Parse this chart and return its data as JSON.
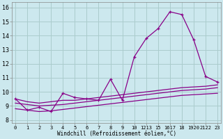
{
  "xlabel": "Windchill (Refroidissement éolien,°C)",
  "background_color": "#cce8ee",
  "line_color": "#880088",
  "grid_color": "#aacccc",
  "x_labels": [
    "0",
    "1",
    "2",
    "3",
    "4",
    "5",
    "6",
    "7",
    "8",
    "9",
    "10",
    "1213",
    "15",
    "1617",
    "18",
    "1920",
    "2122",
    "23"
  ],
  "x_positions": [
    0,
    1,
    2,
    3,
    4,
    5,
    6,
    7,
    8,
    9,
    10,
    11,
    12,
    13,
    14,
    15,
    16,
    17
  ],
  "ylim": [
    7.8,
    16.4
  ],
  "xlim": [
    -0.3,
    17.3
  ],
  "yticks": [
    8,
    9,
    10,
    11,
    12,
    13,
    14,
    15,
    16
  ],
  "series1_x": [
    0,
    1,
    2,
    3,
    4,
    5,
    6,
    7,
    8,
    9,
    10,
    11,
    12,
    13,
    14,
    15,
    16,
    17
  ],
  "series1_y": [
    9.5,
    8.7,
    8.9,
    8.6,
    9.9,
    9.6,
    9.5,
    9.4,
    10.9,
    9.4,
    12.5,
    13.8,
    14.5,
    15.7,
    15.5,
    13.7,
    11.1,
    10.7
  ],
  "series2_x": [
    0,
    1,
    2,
    3,
    4,
    5,
    6,
    7,
    8,
    9,
    10,
    11,
    12,
    13,
    14,
    15,
    16,
    17
  ],
  "series2_y": [
    9.5,
    9.3,
    9.2,
    9.3,
    9.4,
    9.4,
    9.5,
    9.6,
    9.7,
    9.8,
    9.9,
    10.0,
    10.1,
    10.2,
    10.3,
    10.35,
    10.4,
    10.5
  ],
  "series3_x": [
    0,
    1,
    2,
    3,
    4,
    5,
    6,
    7,
    8,
    9,
    10,
    11,
    12,
    13,
    14,
    15,
    16,
    17
  ],
  "series3_y": [
    9.2,
    9.1,
    9.0,
    9.05,
    9.1,
    9.2,
    9.3,
    9.4,
    9.5,
    9.6,
    9.7,
    9.8,
    9.9,
    10.0,
    10.1,
    10.15,
    10.2,
    10.3
  ],
  "series4_x": [
    0,
    1,
    2,
    3,
    4,
    5,
    6,
    7,
    8,
    9,
    10,
    11,
    12,
    13,
    14,
    15,
    16,
    17
  ],
  "series4_y": [
    8.8,
    8.7,
    8.6,
    8.65,
    8.75,
    8.85,
    8.95,
    9.05,
    9.15,
    9.25,
    9.35,
    9.45,
    9.55,
    9.65,
    9.75,
    9.8,
    9.85,
    9.9
  ]
}
